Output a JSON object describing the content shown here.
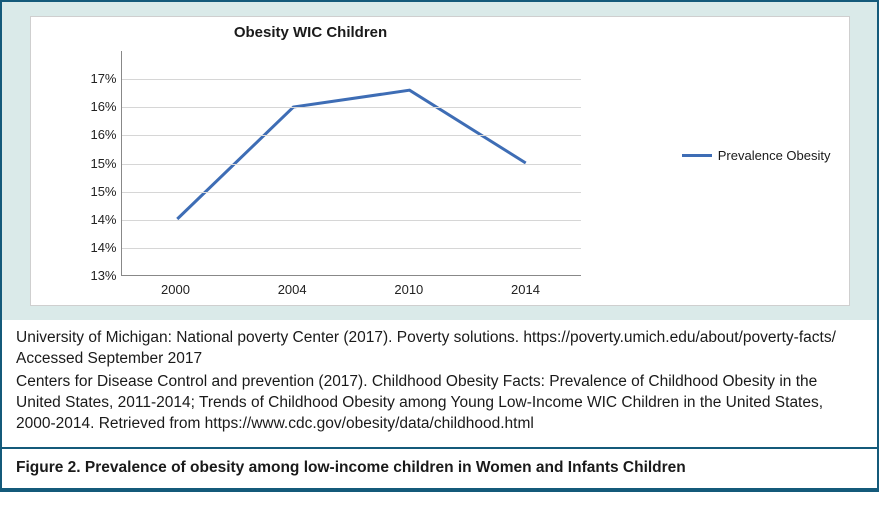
{
  "chart": {
    "type": "line",
    "title": "Obesity WIC Children",
    "title_fontsize": 15,
    "title_weight": "bold",
    "background_color": "#daeae9",
    "plot_background": "#ffffff",
    "panel_border_color": "#cfcfcf",
    "grid_color": "#d6d6d6",
    "axis_color": "#888888",
    "label_fontsize": 13,
    "x_categories": [
      "2000",
      "2004",
      "2010",
      "2014"
    ],
    "y_ticks": [
      "13%",
      "14%",
      "14%",
      "15%",
      "15%",
      "16%",
      "16%",
      "17%"
    ],
    "y_min": 13.0,
    "y_max": 17.0,
    "y_tick_step": 0.5,
    "series": {
      "name": "Prevalence Obesity",
      "color": "#3e6db5",
      "line_width": 3,
      "values": [
        14.0,
        16.0,
        16.3,
        15.0
      ]
    },
    "legend_position": "right"
  },
  "citations": {
    "line1": "University of Michigan: National poverty Center (2017). Poverty solutions. https://poverty.umich.edu/about/poverty-facts/  Accessed September 2017",
    "line2": "Centers for Disease Control and prevention (2017). Childhood Obesity Facts: Prevalence of Childhood Obesity in the United States, 2011-2014; Trends of Childhood Obesity among Young Low-Income WIC Children in the United States, 2000-2014. Retrieved from https://www.cdc.gov/obesity/data/childhood.html"
  },
  "figure_caption": "Figure 2. Prevalence of obesity among low-income children in Women and Infants Children",
  "frame_border_color": "#145a7a"
}
